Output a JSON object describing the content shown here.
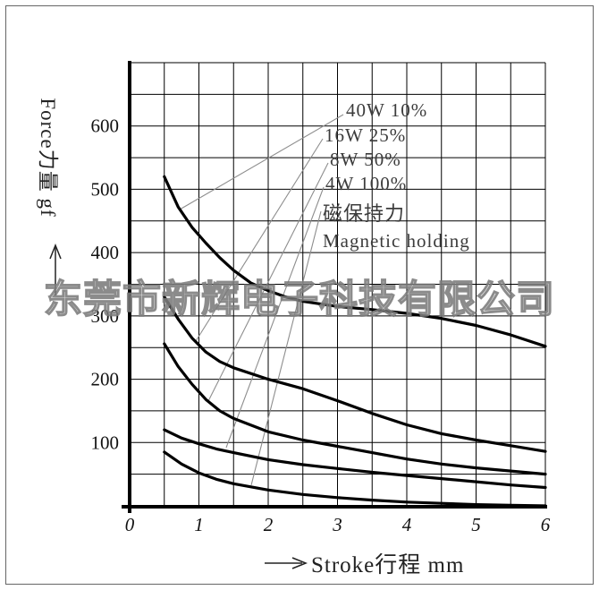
{
  "watermark": "东莞市新辉电子科技有限公司",
  "chart_data": {
    "type": "line",
    "title": "",
    "xlabel": "Stroke行程 mm",
    "ylabel": "Force力量 gf",
    "xlim": [
      0,
      6
    ],
    "ylim": [
      0,
      700
    ],
    "xticks": [
      0,
      1,
      2,
      3,
      4,
      5,
      6
    ],
    "yticks": [
      100,
      200,
      300,
      400,
      500,
      600
    ],
    "grid": {
      "on": true,
      "x_step": 0.5,
      "y_step": 50,
      "color": "#000000"
    },
    "curve_color": "#000000",
    "series": [
      {
        "name": "40W 10%",
        "points": [
          [
            0.5,
            520
          ],
          [
            0.7,
            472
          ],
          [
            0.9,
            440
          ],
          [
            1.1,
            415
          ],
          [
            1.3,
            392
          ],
          [
            1.5,
            372
          ],
          [
            1.75,
            352
          ],
          [
            2,
            340
          ],
          [
            2.25,
            330
          ],
          [
            2.5,
            323
          ],
          [
            3,
            315
          ],
          [
            3.5,
            310
          ],
          [
            4,
            304
          ],
          [
            4.5,
            296
          ],
          [
            5,
            285
          ],
          [
            5.5,
            270
          ],
          [
            6,
            252
          ]
        ]
      },
      {
        "name": "16W 25%",
        "points": [
          [
            0.5,
            330
          ],
          [
            0.7,
            295
          ],
          [
            0.9,
            265
          ],
          [
            1.1,
            243
          ],
          [
            1.3,
            228
          ],
          [
            1.5,
            218
          ],
          [
            2,
            200
          ],
          [
            2.5,
            185
          ],
          [
            3,
            166
          ],
          [
            3.5,
            146
          ],
          [
            4,
            128
          ],
          [
            4.5,
            114
          ],
          [
            5,
            104
          ],
          [
            5.5,
            95
          ],
          [
            6,
            86
          ]
        ]
      },
      {
        "name": "8W 50%",
        "points": [
          [
            0.5,
            256
          ],
          [
            0.7,
            220
          ],
          [
            0.9,
            192
          ],
          [
            1.1,
            168
          ],
          [
            1.3,
            150
          ],
          [
            1.5,
            138
          ],
          [
            2,
            117
          ],
          [
            2.5,
            104
          ],
          [
            3,
            94
          ],
          [
            3.5,
            84
          ],
          [
            4,
            74
          ],
          [
            4.5,
            66
          ],
          [
            5,
            60
          ],
          [
            5.5,
            55
          ],
          [
            6,
            50
          ]
        ]
      },
      {
        "name": "4W 100%",
        "points": [
          [
            0.5,
            120
          ],
          [
            0.75,
            107
          ],
          [
            1,
            98
          ],
          [
            1.25,
            90
          ],
          [
            1.5,
            84
          ],
          [
            2,
            73
          ],
          [
            2.5,
            65
          ],
          [
            3,
            59
          ],
          [
            3.5,
            53
          ],
          [
            4,
            48
          ],
          [
            4.5,
            43
          ],
          [
            5,
            38
          ],
          [
            5.5,
            33
          ],
          [
            6,
            29
          ]
        ]
      },
      {
        "name": "磁保持力 Magnetic holding",
        "points": [
          [
            0.5,
            85
          ],
          [
            0.75,
            66
          ],
          [
            1,
            52
          ],
          [
            1.25,
            42
          ],
          [
            1.5,
            35
          ],
          [
            2,
            25
          ],
          [
            2.5,
            18
          ],
          [
            3,
            13
          ],
          [
            3.5,
            9
          ],
          [
            4,
            6
          ],
          [
            4.5,
            4
          ],
          [
            5,
            2
          ],
          [
            5.5,
            1
          ],
          [
            6,
            0
          ]
        ]
      }
    ],
    "legend": {
      "position": "upper center",
      "items": [
        "40W 10%",
        "16W 25%",
        "8W 50%",
        "4W 100%",
        "磁保持力",
        "Magnetic holding"
      ]
    }
  }
}
